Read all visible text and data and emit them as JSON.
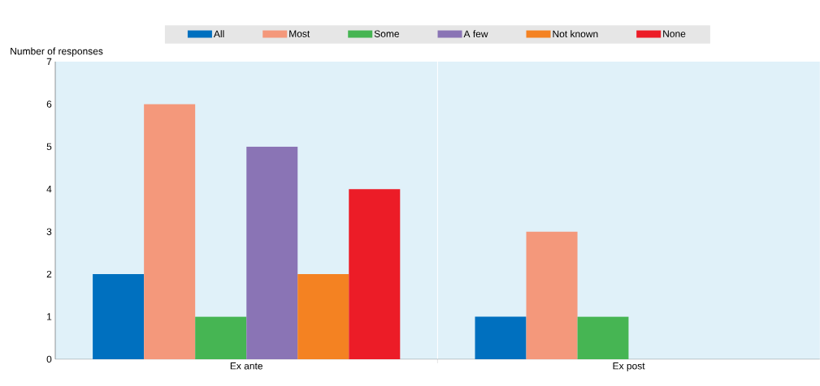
{
  "chart_data": {
    "type": "bar",
    "ylabel": "Number of responses",
    "categories": [
      "Ex ante",
      "Ex post"
    ],
    "series": [
      {
        "name": "All",
        "color": "#0070bf",
        "values": [
          2,
          1
        ]
      },
      {
        "name": "Most",
        "color": "#f4987b",
        "values": [
          6,
          3
        ]
      },
      {
        "name": "Some",
        "color": "#46b553",
        "values": [
          1,
          1
        ]
      },
      {
        "name": "A few",
        "color": "#8a74b5",
        "values": [
          5,
          0
        ]
      },
      {
        "name": "Not known",
        "color": "#f48222",
        "values": [
          2,
          0
        ]
      },
      {
        "name": "None",
        "color": "#ec1c27",
        "values": [
          4,
          0
        ]
      }
    ],
    "ylim": [
      0,
      7
    ],
    "yticks": [
      0,
      1,
      2,
      3,
      4,
      5,
      6,
      7
    ],
    "grid": false,
    "legend": "top"
  }
}
